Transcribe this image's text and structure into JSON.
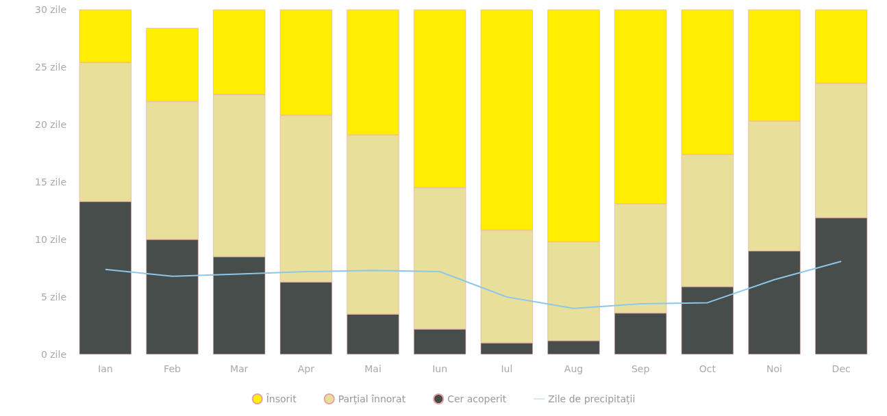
{
  "chart_data": {
    "type": "bar",
    "stacked": true,
    "categories": [
      "Ian",
      "Feb",
      "Mar",
      "Apr",
      "Mai",
      "Iun",
      "Iul",
      "Aug",
      "Sep",
      "Oct",
      "Noi",
      "Dec"
    ],
    "series": [
      {
        "name": "Cer acoperit",
        "color": "#474d4a",
        "values": [
          13.3,
          10.0,
          8.5,
          6.3,
          3.5,
          2.2,
          1.0,
          1.2,
          3.6,
          5.9,
          9.0,
          11.9
        ]
      },
      {
        "name": "Parțial înnorat",
        "color": "#e8e09a",
        "values": [
          12.1,
          12.0,
          14.1,
          14.5,
          15.6,
          12.3,
          9.8,
          8.6,
          9.5,
          11.5,
          11.3,
          11.7
        ]
      },
      {
        "name": "Însorit",
        "color": "#ffee00",
        "values": [
          4.6,
          6.4,
          7.4,
          9.2,
          10.9,
          15.5,
          19.2,
          20.2,
          16.9,
          12.6,
          9.7,
          6.4
        ]
      },
      {
        "name": "Zile de precipitații",
        "type": "line",
        "color": "#8ec6ea",
        "values": [
          7.4,
          6.8,
          7.0,
          7.2,
          7.3,
          7.2,
          5.0,
          4.0,
          4.4,
          4.5,
          6.5,
          8.1
        ]
      }
    ],
    "ylim": [
      0,
      30
    ],
    "yticks": [
      {
        "value": 0,
        "label": "0 zile"
      },
      {
        "value": 5,
        "label": "5 zile"
      },
      {
        "value": 10,
        "label": "10 zile"
      },
      {
        "value": 15,
        "label": "15 zile"
      },
      {
        "value": 20,
        "label": "20 zile"
      },
      {
        "value": 25,
        "label": "25 zile"
      },
      {
        "value": 30,
        "label": "30 zile"
      }
    ],
    "grid": false,
    "legend": "bottom",
    "marker": "none"
  }
}
